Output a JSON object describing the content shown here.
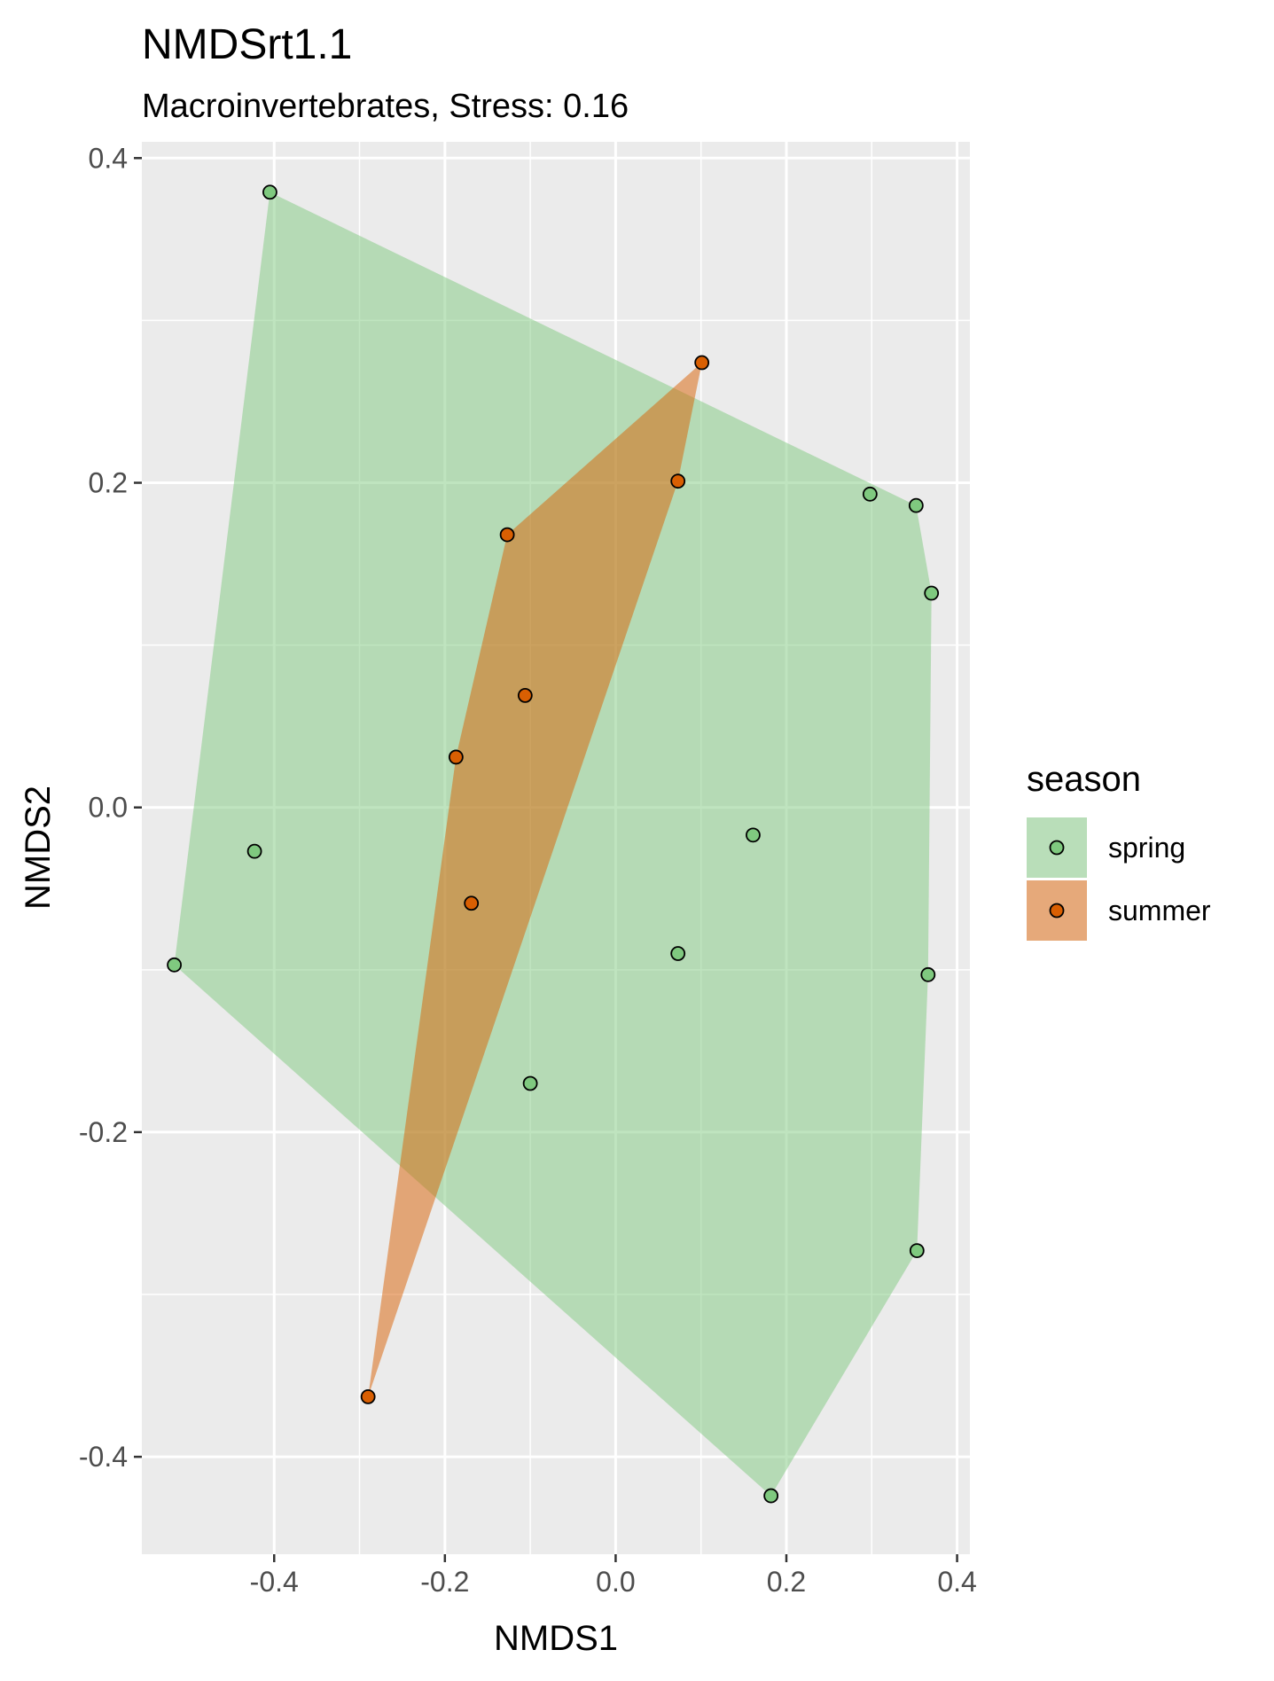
{
  "chart_data": {
    "type": "scatter",
    "title": "NMDSrt1.1",
    "subtitle": "Macroinvertebrates, Stress: 0.16",
    "xlabel": "NMDS1",
    "ylabel": "NMDS2",
    "xlim": [
      -0.555,
      0.415
    ],
    "ylim": [
      -0.46,
      0.41
    ],
    "x_ticks": [
      -0.4,
      -0.2,
      0.0,
      0.2,
      0.4
    ],
    "y_ticks": [
      -0.4,
      -0.2,
      0.0,
      0.2,
      0.4
    ],
    "x_tick_labels": [
      "-0.4",
      "-0.2",
      "0.0",
      "0.2",
      "0.4"
    ],
    "y_tick_labels": [
      "-0.4",
      "-0.2",
      "0.0",
      "0.2",
      "0.4"
    ],
    "grid": true,
    "background": "#ebebeb",
    "legend": {
      "title": "season",
      "position": "right",
      "entries": [
        "spring",
        "summer"
      ]
    },
    "series": [
      {
        "name": "spring",
        "point_color": "#7fc97f",
        "hull_color": "#7fc97f",
        "hull_opacity": 0.5,
        "points": [
          {
            "x": -0.405,
            "y": 0.379
          },
          {
            "x": 0.298,
            "y": 0.193
          },
          {
            "x": 0.352,
            "y": 0.186
          },
          {
            "x": 0.37,
            "y": 0.132
          },
          {
            "x": 0.161,
            "y": -0.017
          },
          {
            "x": -0.423,
            "y": -0.027
          },
          {
            "x": 0.073,
            "y": -0.09
          },
          {
            "x": -0.517,
            "y": -0.097
          },
          {
            "x": 0.366,
            "y": -0.103
          },
          {
            "x": -0.1,
            "y": -0.17
          },
          {
            "x": 0.353,
            "y": -0.273
          },
          {
            "x": 0.182,
            "y": -0.424
          }
        ],
        "hull": [
          {
            "x": -0.405,
            "y": 0.379
          },
          {
            "x": 0.352,
            "y": 0.186
          },
          {
            "x": 0.37,
            "y": 0.132
          },
          {
            "x": 0.366,
            "y": -0.103
          },
          {
            "x": 0.353,
            "y": -0.273
          },
          {
            "x": 0.182,
            "y": -0.424
          },
          {
            "x": -0.517,
            "y": -0.097
          }
        ]
      },
      {
        "name": "summer",
        "point_color": "#d95f02",
        "hull_color": "#d95f02",
        "hull_opacity": 0.5,
        "points": [
          {
            "x": 0.101,
            "y": 0.274
          },
          {
            "x": 0.073,
            "y": 0.201
          },
          {
            "x": -0.127,
            "y": 0.168
          },
          {
            "x": -0.106,
            "y": 0.069
          },
          {
            "x": -0.187,
            "y": 0.031
          },
          {
            "x": -0.169,
            "y": -0.059
          },
          {
            "x": -0.29,
            "y": -0.363
          }
        ],
        "hull": [
          {
            "x": 0.101,
            "y": 0.274
          },
          {
            "x": 0.073,
            "y": 0.201
          },
          {
            "x": -0.29,
            "y": -0.363
          },
          {
            "x": -0.187,
            "y": 0.031
          },
          {
            "x": -0.127,
            "y": 0.168
          }
        ]
      }
    ]
  }
}
